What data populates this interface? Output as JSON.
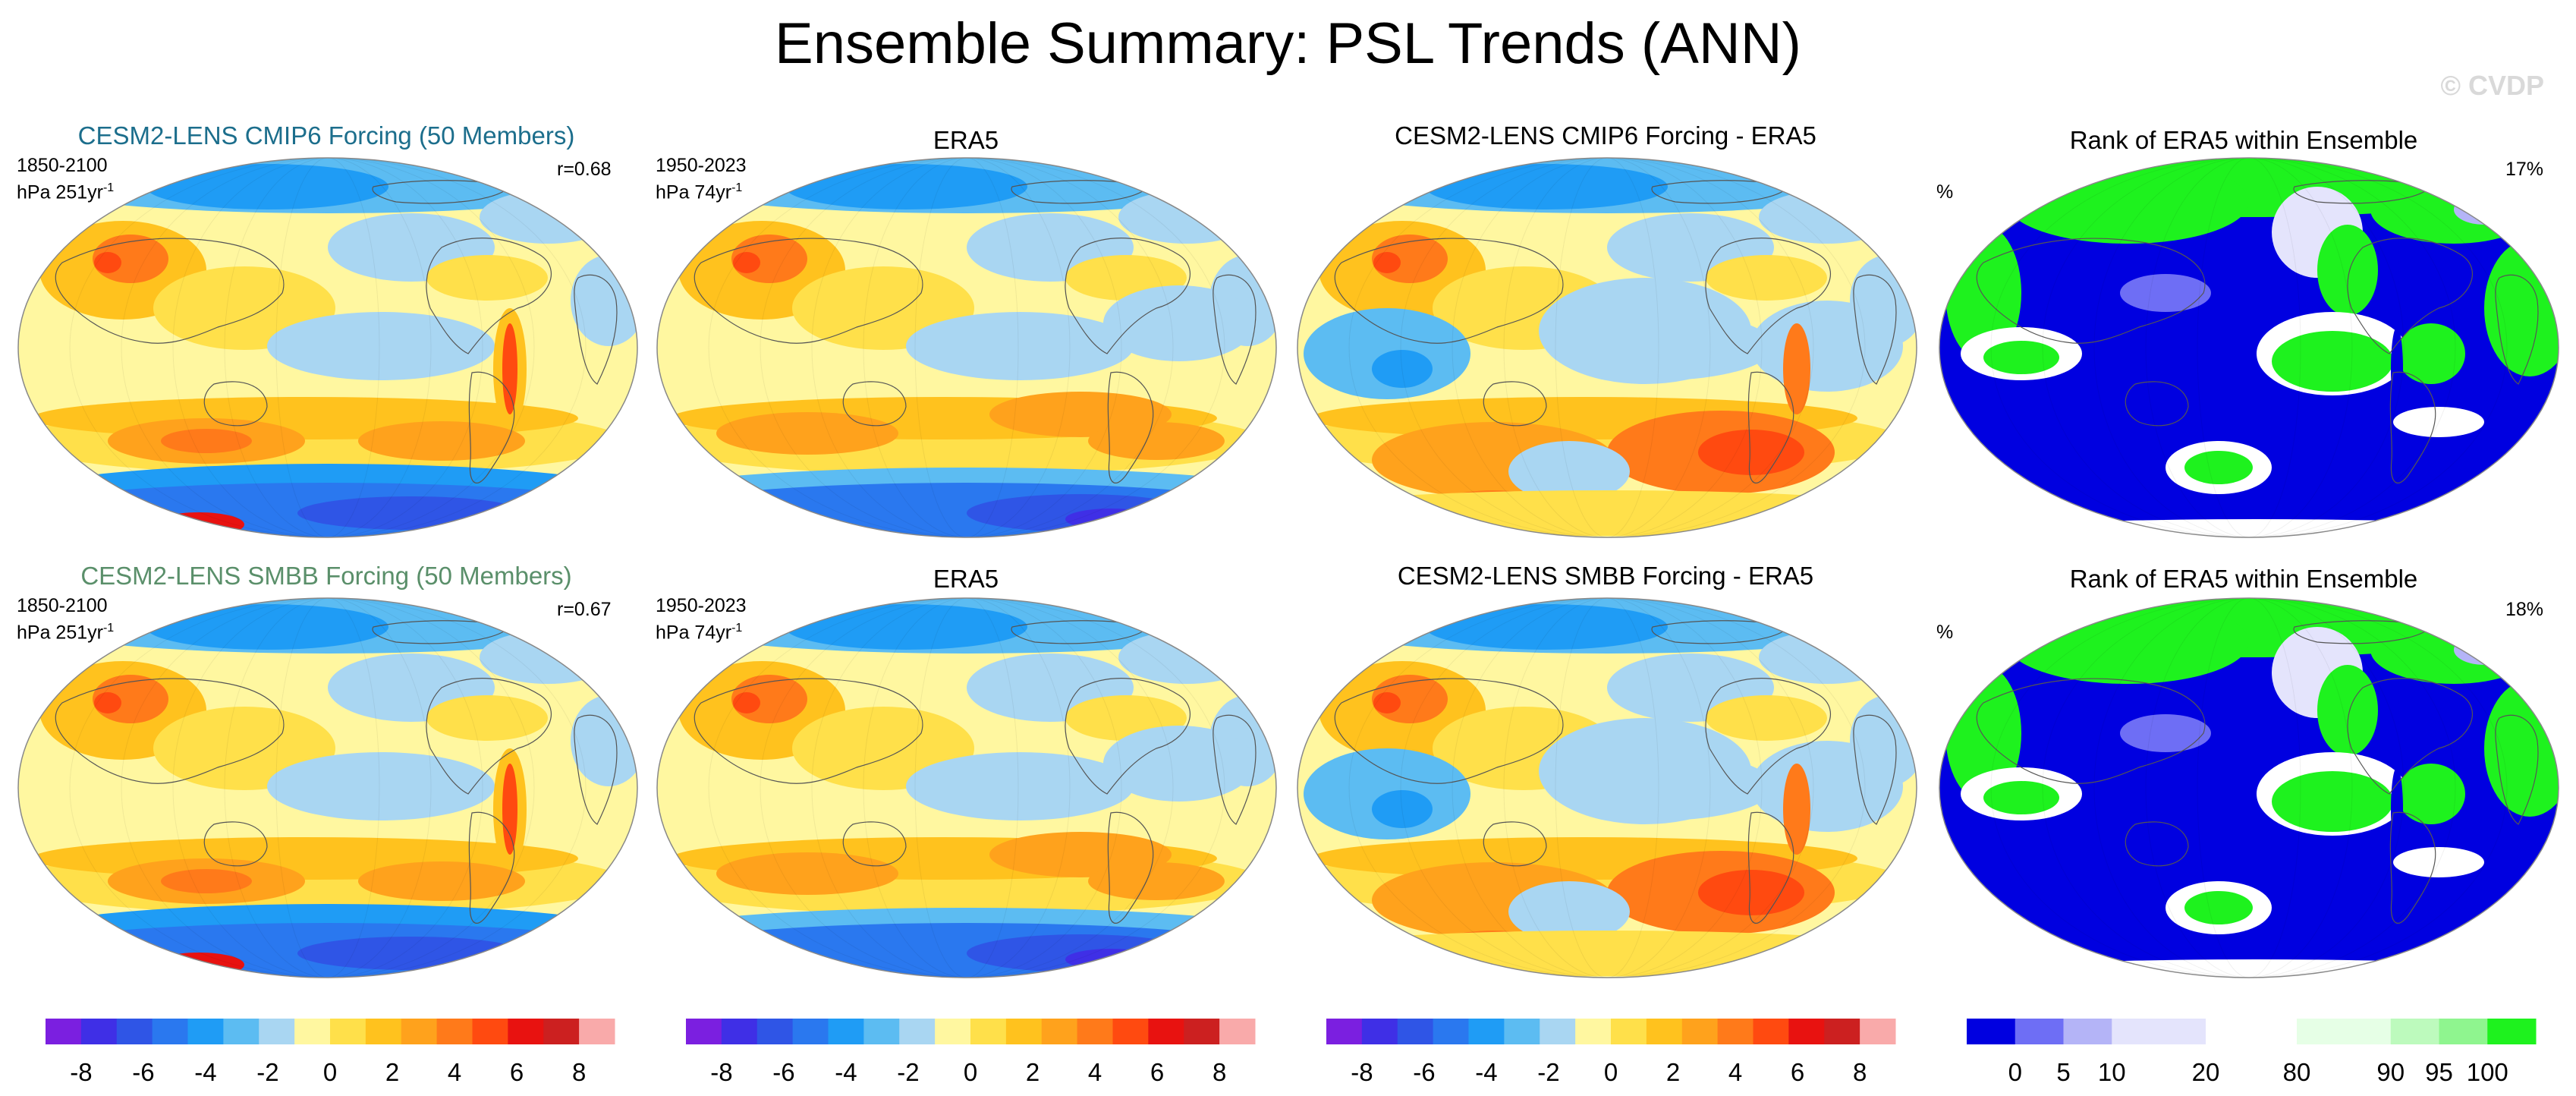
{
  "title": "Ensemble Summary: PSL Trends (ANN)",
  "watermark": "© CVDP",
  "colors": {
    "cesm_cmip6": "#1c6e8c",
    "cesm_smbb": "#5a8f6a",
    "trend_scale": [
      "#7b1fe0",
      "#3f2fe6",
      "#2f55e6",
      "#2a78ef",
      "#1f9cf5",
      "#5cbcf2",
      "#a9d6f2",
      "#fff7a0",
      "#ffe04a",
      "#ffc21e",
      "#ffa21c",
      "#ff7a1a",
      "#ff4a10",
      "#e81210",
      "#cc2020",
      "#f9aaaa"
    ],
    "rank_scale": [
      "#0000e0",
      "#6e6ef5",
      "#b4b4f7",
      "#e4e4fc",
      "#ffffff",
      "#e6ffe6",
      "#bdfabd",
      "#8ff58f",
      "#1ef21e"
    ],
    "land_outline": "#555555"
  },
  "rows": [
    {
      "ensemble_title": "CESM2-LENS CMIP6 Forcing (50 Members)",
      "ens_period": "1850-2100",
      "ens_units": "hPa 251yr",
      "ens_exp": "-1",
      "pattern_corr": "r=0.68",
      "obs_title": "ERA5",
      "obs_period": "1950-2023",
      "obs_units": "hPa 74yr",
      "obs_exp": "-1",
      "diff_title": "CESM2-LENS CMIP6 Forcing - ERA5",
      "rank_title": "Rank of ERA5 within Ensemble",
      "rank_units": "%",
      "rank_pct": "17%"
    },
    {
      "ensemble_title": "CESM2-LENS SMBB Forcing (50 Members)",
      "ens_period": "1850-2100",
      "ens_units": "hPa 251yr",
      "ens_exp": "-1",
      "pattern_corr": "r=0.67",
      "obs_title": "ERA5",
      "obs_period": "1950-2023",
      "obs_units": "hPa 74yr",
      "obs_exp": "-1",
      "diff_title": "CESM2-LENS SMBB Forcing - ERA5",
      "rank_title": "Rank of ERA5 within Ensemble",
      "rank_units": "%",
      "rank_pct": "18%"
    }
  ],
  "chart_data": [
    {
      "type": "colorbar",
      "name": "PSL trend scale",
      "levels": [
        -8,
        -7,
        -6,
        -5,
        -4,
        -3,
        -2,
        -1,
        0,
        1,
        2,
        3,
        4,
        5,
        6,
        7,
        8
      ],
      "tick_labels": [
        "-8",
        "-6",
        "-4",
        "-2",
        "0",
        "2",
        "4",
        "6",
        "8"
      ],
      "units": "hPa"
    },
    {
      "type": "colorbar",
      "name": "rank scale",
      "levels": [
        0,
        5,
        10,
        20,
        80,
        90,
        95,
        100
      ],
      "tick_labels": [
        "0",
        "5",
        "10",
        "20",
        "80",
        "90",
        "95",
        "100"
      ],
      "units": "%"
    }
  ]
}
